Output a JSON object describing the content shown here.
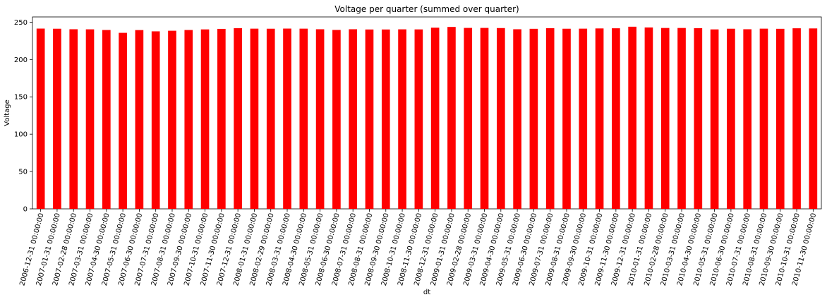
{
  "chart_data": {
    "type": "bar",
    "title": "Voltage per quarter (summed over quarter)",
    "xlabel": "dt",
    "ylabel": "Voltage",
    "ylim": [
      0,
      257
    ],
    "yticks": [
      0,
      50,
      100,
      150,
      200,
      250
    ],
    "grid": false,
    "legend": "none",
    "bar_color": "#ff0000",
    "categories": [
      "2006-12-31 00:00:00",
      "2007-01-31 00:00:00",
      "2007-02-28 00:00:00",
      "2007-03-31 00:00:00",
      "2007-04-30 00:00:00",
      "2007-05-31 00:00:00",
      "2007-06-30 00:00:00",
      "2007-07-31 00:00:00",
      "2007-08-31 00:00:00",
      "2007-09-30 00:00:00",
      "2007-10-31 00:00:00",
      "2007-11-30 00:00:00",
      "2007-12-31 00:00:00",
      "2008-01-31 00:00:00",
      "2008-02-29 00:00:00",
      "2008-03-31 00:00:00",
      "2008-04-30 00:00:00",
      "2008-05-31 00:00:00",
      "2008-06-30 00:00:00",
      "2008-07-31 00:00:00",
      "2008-08-31 00:00:00",
      "2008-09-30 00:00:00",
      "2008-10-31 00:00:00",
      "2008-11-30 00:00:00",
      "2008-12-31 00:00:00",
      "2009-01-31 00:00:00",
      "2009-02-28 00:00:00",
      "2009-03-31 00:00:00",
      "2009-04-30 00:00:00",
      "2009-05-31 00:00:00",
      "2009-06-30 00:00:00",
      "2009-07-31 00:00:00",
      "2009-08-31 00:00:00",
      "2009-09-30 00:00:00",
      "2009-10-31 00:00:00",
      "2009-11-30 00:00:00",
      "2009-12-31 00:00:00",
      "2010-01-31 00:00:00",
      "2010-02-28 00:00:00",
      "2010-03-31 00:00:00",
      "2010-04-30 00:00:00",
      "2010-05-31 00:00:00",
      "2010-06-30 00:00:00",
      "2010-07-31 00:00:00",
      "2010-08-31 00:00:00",
      "2010-09-30 00:00:00",
      "2010-10-31 00:00:00",
      "2010-11-30 00:00:00"
    ],
    "values": [
      241.4,
      241.2,
      240.5,
      240.4,
      239.5,
      235.7,
      239.4,
      237.7,
      238.5,
      239.5,
      240.3,
      241.0,
      242.0,
      241.3,
      241.2,
      241.4,
      241.3,
      240.5,
      239.6,
      240.5,
      240.2,
      240.2,
      240.4,
      240.3,
      242.6,
      243.6,
      242.3,
      242.3,
      242.1,
      240.5,
      241.1,
      241.9,
      241.2,
      241.3,
      241.6,
      241.8,
      243.9,
      242.9,
      242.2,
      242.2,
      242.0,
      240.3,
      241.2,
      240.5,
      241.3,
      241.1,
      241.8,
      241.6
    ]
  }
}
